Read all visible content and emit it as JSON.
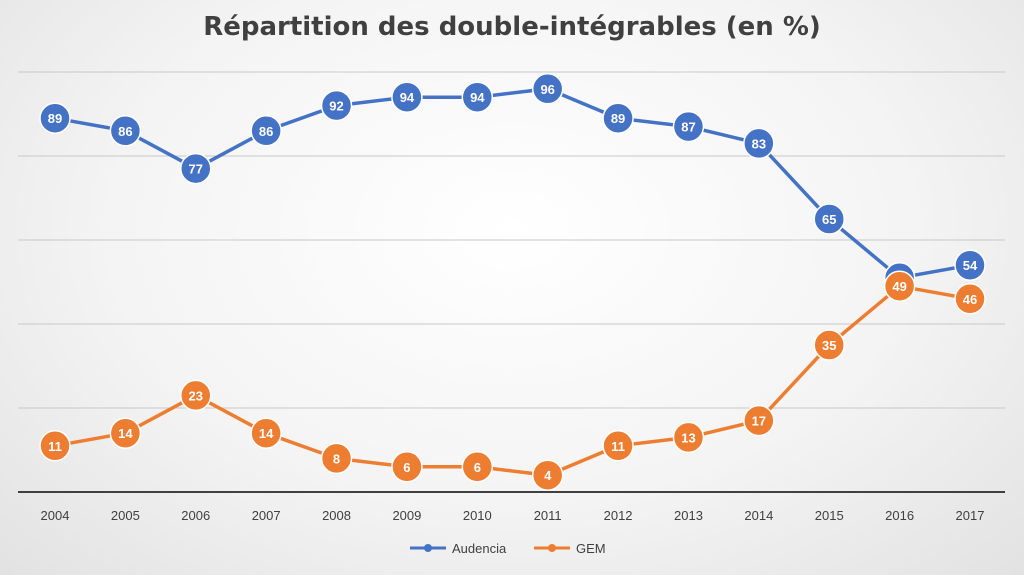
{
  "chart_data": {
    "type": "line",
    "title": "Répartition des double-intégrables (en %)",
    "xlabel": "",
    "ylabel": "",
    "categories": [
      "2004",
      "2005",
      "2006",
      "2007",
      "2008",
      "2009",
      "2010",
      "2011",
      "2012",
      "2013",
      "2014",
      "2015",
      "2016",
      "2017"
    ],
    "ylim": [
      0,
      100
    ],
    "y_axis_labels_shown": false,
    "grid": true,
    "legend": "bottom",
    "series": [
      {
        "name": "Audencia",
        "color": "#4472C4",
        "values": [
          89,
          86,
          77,
          86,
          92,
          94,
          94,
          96,
          89,
          87,
          83,
          65,
          51,
          54
        ]
      },
      {
        "name": "GEM",
        "color": "#ED7D31",
        "values": [
          11,
          14,
          23,
          14,
          8,
          6,
          6,
          4,
          11,
          13,
          17,
          35,
          49,
          46
        ]
      }
    ]
  }
}
